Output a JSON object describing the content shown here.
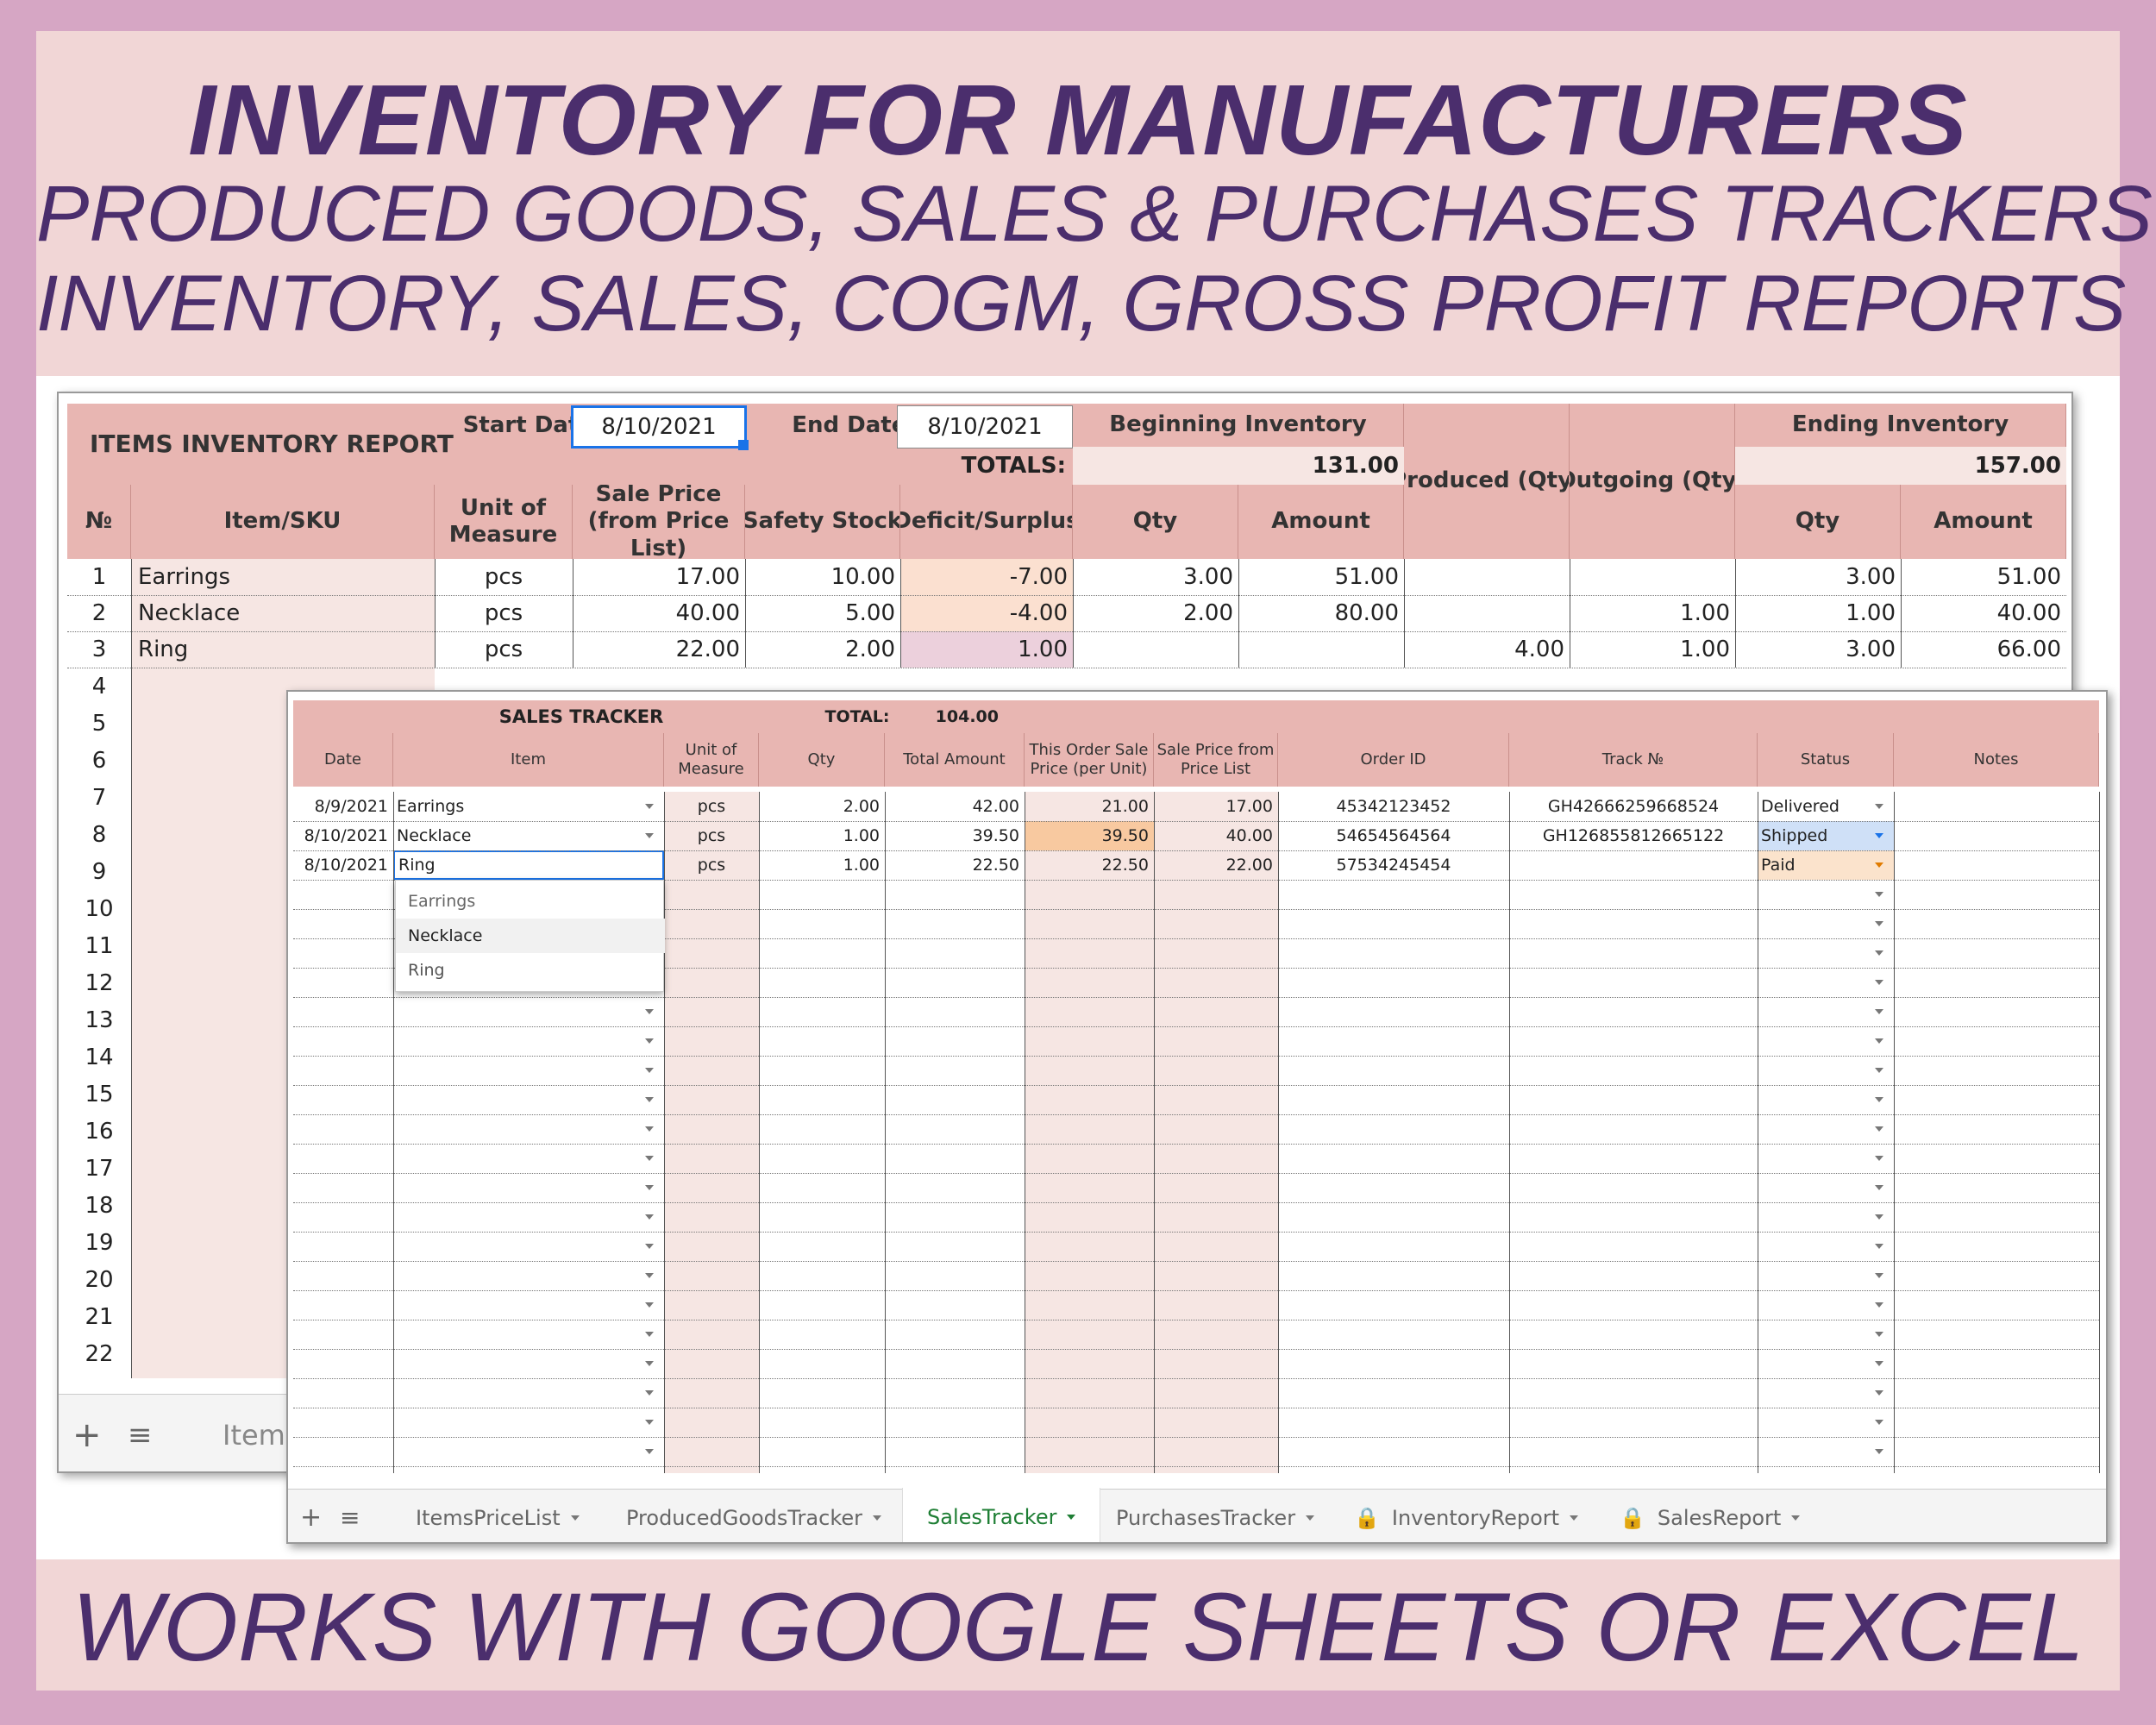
{
  "banner": {
    "title": "INVENTORY FOR MANUFACTURERS",
    "line2": "PRODUCED GOODS, SALES & PURCHASES TRACKERS",
    "line3": "INVENTORY, SALES, COGM, GROSS PROFIT REPORTS",
    "footer": "WORKS WITH GOOGLE SHEETS OR EXCEL"
  },
  "inventory_report": {
    "title": "ITEMS INVENTORY REPORT",
    "start_label": "Start Date:",
    "start_value": "8/10/2021",
    "end_label": "End Date:",
    "end_value": "8/10/2021",
    "totals_label": "TOTALS:",
    "beginning_group": "Beginning Inventory",
    "beginning_total": "131.00",
    "produced": "Produced (Qty)",
    "outgoing": "Outgoing (Qty)",
    "ending_group": "Ending Inventory",
    "ending_total": "157.00",
    "columns": [
      "№",
      "Item/SKU",
      "Unit of Measure",
      "Sale Price (from Price List)",
      "Safety Stock",
      "Deficit/Surplus",
      "Qty",
      "Amount",
      "Qty",
      "Amount"
    ],
    "rows": [
      {
        "n": "1",
        "item": "Earrings",
        "unit": "pcs",
        "price": "17.00",
        "safety": "10.00",
        "deficit": "-7.00",
        "bqty": "3.00",
        "bamt": "51.00",
        "prod": "",
        "out": "",
        "eqty": "3.00",
        "eamt": "51.00"
      },
      {
        "n": "2",
        "item": "Necklace",
        "unit": "pcs",
        "price": "40.00",
        "safety": "5.00",
        "deficit": "-4.00",
        "bqty": "2.00",
        "bamt": "80.00",
        "prod": "",
        "out": "1.00",
        "eqty": "1.00",
        "eamt": "40.00"
      },
      {
        "n": "3",
        "item": "Ring",
        "unit": "pcs",
        "price": "22.00",
        "safety": "2.00",
        "deficit": "1.00",
        "bqty": "",
        "bamt": "",
        "prod": "4.00",
        "out": "1.00",
        "eqty": "3.00",
        "eamt": "66.00"
      }
    ],
    "row_numbers": [
      "4",
      "5",
      "6",
      "7",
      "8",
      "9",
      "10",
      "11",
      "12",
      "13",
      "14",
      "15",
      "16",
      "17",
      "18",
      "19",
      "20",
      "21",
      "22"
    ],
    "tab_label": "Items"
  },
  "sales_tracker": {
    "title": "SALES TRACKER",
    "total_label": "TOTAL:",
    "total_value": "104.00",
    "columns": [
      "Date",
      "Item",
      "Unit of Measure",
      "Qty",
      "Total Amount",
      "This Order Sale Price (per Unit)",
      "Sale Price from Price List",
      "Order ID",
      "Track №",
      "Status",
      "Notes"
    ],
    "rows": [
      {
        "date": "8/9/2021",
        "item": "Earrings",
        "unit": "pcs",
        "qty": "2.00",
        "total": "42.00",
        "order_price": "21.00",
        "list_price": "17.00",
        "order_id": "45342123452",
        "track": "GH42666259668524",
        "status": "Delivered",
        "notes": ""
      },
      {
        "date": "8/10/2021",
        "item": "Necklace",
        "unit": "pcs",
        "qty": "1.00",
        "total": "39.50",
        "order_price": "39.50",
        "list_price": "40.00",
        "order_id": "54654564564",
        "track": "GH126855812665122",
        "status": "Shipped",
        "notes": ""
      },
      {
        "date": "8/10/2021",
        "item": "Ring",
        "unit": "pcs",
        "qty": "1.00",
        "total": "22.50",
        "order_price": "22.50",
        "list_price": "22.00",
        "order_id": "57534245454",
        "track": "",
        "status": "Paid",
        "notes": ""
      }
    ],
    "dropdown_options": [
      "Earrings",
      "Necklace",
      "Ring"
    ],
    "tabs": [
      "ItemsPriceList",
      "ProducedGoodsTracker",
      "SalesTracker",
      "PurchasesTracker",
      "InventoryReport",
      "SalesReport"
    ],
    "active_tab": "SalesTracker"
  },
  "colors": {
    "frame": "#d6a6c4",
    "banner_bg": "#f1d6d6",
    "title_text": "#4b2e6d",
    "header_cell": "#e8b6b2",
    "row_cell": "#f6e6e3",
    "deficit": "#fbe0d0",
    "surplus": "#ecd0dc",
    "orange_cell": "#f8c9a0",
    "status_shipped": "#cfe0f7",
    "status_paid": "#fbe3cc",
    "active_tab_text": "#1e7e34"
  },
  "icons": [
    "plus-icon",
    "sheets-list-icon",
    "lock-icon",
    "dropdown-arrow-icon"
  ]
}
